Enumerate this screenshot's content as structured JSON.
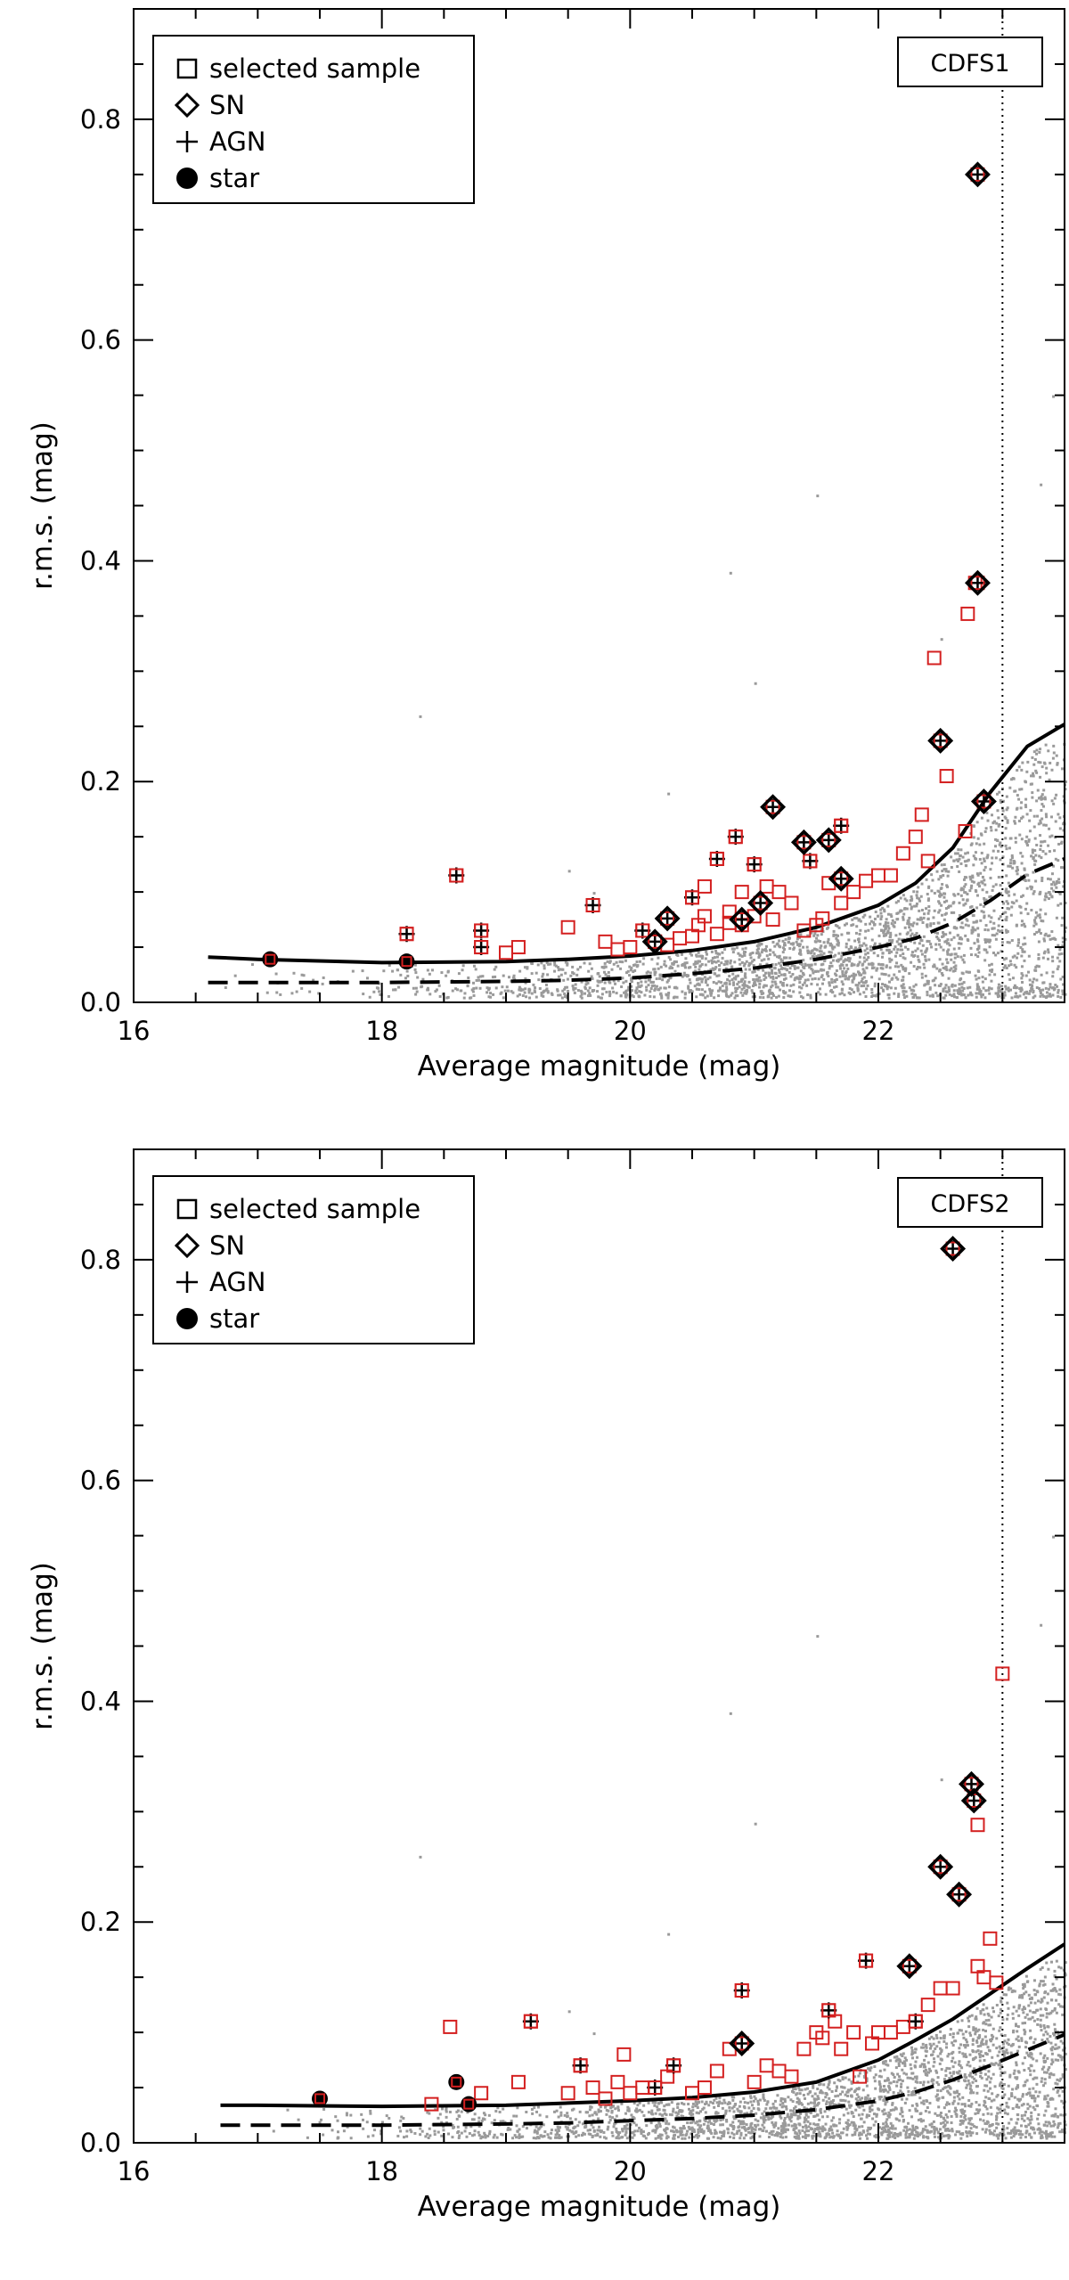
{
  "chart_data": [
    {
      "type": "scatter",
      "field_label": "CDFS1",
      "xlabel": "Average magnitude (mag)",
      "ylabel": "r.m.s. (mag)",
      "xlim": [
        16.0,
        23.5
      ],
      "ylim": [
        0.0,
        0.9
      ],
      "x_ticks": [
        16,
        18,
        20,
        22
      ],
      "y_ticks": [
        0.0,
        0.2,
        0.4,
        0.6,
        0.8
      ],
      "limit_magnitude": 23.0,
      "legend": {
        "position": "top-left",
        "entries": [
          {
            "symbol": "square",
            "label": "selected sample"
          },
          {
            "symbol": "diamond",
            "label": "SN"
          },
          {
            "symbol": "plus",
            "label": "AGN"
          },
          {
            "symbol": "filled-circle",
            "label": "star"
          }
        ]
      },
      "colors": {
        "background_points": "#9a9a9a",
        "selected": "#d42020",
        "line": "#000000"
      },
      "threshold_solid": [
        [
          16.6,
          0.041
        ],
        [
          17.0,
          0.039
        ],
        [
          18.0,
          0.036
        ],
        [
          19.0,
          0.037
        ],
        [
          19.5,
          0.039
        ],
        [
          20.0,
          0.042
        ],
        [
          20.5,
          0.047
        ],
        [
          21.0,
          0.055
        ],
        [
          21.5,
          0.068
        ],
        [
          22.0,
          0.088
        ],
        [
          22.3,
          0.108
        ],
        [
          22.6,
          0.14
        ],
        [
          22.9,
          0.19
        ],
        [
          23.2,
          0.232
        ],
        [
          23.5,
          0.252
        ]
      ],
      "mean_dashed": [
        [
          16.6,
          0.018
        ],
        [
          17.0,
          0.018
        ],
        [
          18.0,
          0.018
        ],
        [
          19.0,
          0.019
        ],
        [
          19.5,
          0.02
        ],
        [
          20.0,
          0.022
        ],
        [
          20.5,
          0.026
        ],
        [
          21.0,
          0.031
        ],
        [
          21.5,
          0.039
        ],
        [
          22.0,
          0.05
        ],
        [
          22.3,
          0.058
        ],
        [
          22.6,
          0.072
        ],
        [
          22.9,
          0.092
        ],
        [
          23.2,
          0.116
        ],
        [
          23.5,
          0.13
        ]
      ],
      "selected_points": [
        [
          18.6,
          0.115
        ],
        [
          18.2,
          0.062
        ],
        [
          18.8,
          0.065
        ],
        [
          18.8,
          0.05
        ],
        [
          19.0,
          0.045
        ],
        [
          19.1,
          0.05
        ],
        [
          19.5,
          0.068
        ],
        [
          19.7,
          0.088
        ],
        [
          19.8,
          0.055
        ],
        [
          19.9,
          0.048
        ],
        [
          20.0,
          0.05
        ],
        [
          20.1,
          0.065
        ],
        [
          20.2,
          0.055
        ],
        [
          20.3,
          0.052
        ],
        [
          20.4,
          0.058
        ],
        [
          20.5,
          0.06
        ],
        [
          20.5,
          0.095
        ],
        [
          20.55,
          0.07
        ],
        [
          20.6,
          0.078
        ],
        [
          20.6,
          0.105
        ],
        [
          20.7,
          0.13
        ],
        [
          20.7,
          0.062
        ],
        [
          20.8,
          0.072
        ],
        [
          20.8,
          0.082
        ],
        [
          20.85,
          0.15
        ],
        [
          20.9,
          0.07
        ],
        [
          20.9,
          0.1
        ],
        [
          21.0,
          0.125
        ],
        [
          21.0,
          0.078
        ],
        [
          21.1,
          0.105
        ],
        [
          21.15,
          0.075
        ],
        [
          21.2,
          0.1
        ],
        [
          21.3,
          0.09
        ],
        [
          21.4,
          0.065
        ],
        [
          21.45,
          0.128
        ],
        [
          21.5,
          0.07
        ],
        [
          21.55,
          0.076
        ],
        [
          21.6,
          0.108
        ],
        [
          21.7,
          0.09
        ],
        [
          21.7,
          0.16
        ],
        [
          21.8,
          0.1
        ],
        [
          21.9,
          0.11
        ],
        [
          22.0,
          0.115
        ],
        [
          22.1,
          0.115
        ],
        [
          22.2,
          0.135
        ],
        [
          22.3,
          0.15
        ],
        [
          22.35,
          0.17
        ],
        [
          22.4,
          0.128
        ],
        [
          22.45,
          0.312
        ],
        [
          22.55,
          0.205
        ],
        [
          22.7,
          0.155
        ],
        [
          22.72,
          0.352
        ],
        [
          22.78,
          0.38
        ]
      ],
      "sn_points": [
        [
          20.3,
          0.076
        ],
        [
          20.2,
          0.055
        ],
        [
          20.9,
          0.075
        ],
        [
          21.05,
          0.09
        ],
        [
          21.15,
          0.177
        ],
        [
          21.4,
          0.145
        ],
        [
          21.6,
          0.147
        ],
        [
          21.7,
          0.112
        ],
        [
          22.5,
          0.237
        ],
        [
          22.85,
          0.182
        ],
        [
          22.8,
          0.38
        ],
        [
          22.8,
          0.75
        ]
      ],
      "agn_points": [
        [
          18.6,
          0.115
        ],
        [
          18.2,
          0.062
        ],
        [
          18.8,
          0.065
        ],
        [
          18.8,
          0.05
        ],
        [
          19.7,
          0.088
        ],
        [
          20.1,
          0.065
        ],
        [
          20.5,
          0.095
        ],
        [
          20.7,
          0.13
        ],
        [
          20.85,
          0.15
        ],
        [
          21.0,
          0.125
        ],
        [
          21.45,
          0.128
        ],
        [
          21.7,
          0.16
        ],
        [
          20.3,
          0.076
        ],
        [
          20.2,
          0.055
        ],
        [
          20.9,
          0.075
        ],
        [
          21.05,
          0.09
        ],
        [
          21.15,
          0.177
        ],
        [
          21.4,
          0.145
        ],
        [
          21.6,
          0.147
        ],
        [
          21.7,
          0.112
        ],
        [
          22.5,
          0.237
        ],
        [
          22.85,
          0.182
        ],
        [
          22.8,
          0.38
        ],
        [
          22.8,
          0.75
        ]
      ],
      "star_points": [
        [
          17.1,
          0.039
        ],
        [
          18.2,
          0.037
        ]
      ]
    },
    {
      "type": "scatter",
      "field_label": "CDFS2",
      "xlabel": "Average magnitude (mag)",
      "ylabel": "r.m.s. (mag)",
      "xlim": [
        16.0,
        23.5
      ],
      "ylim": [
        0.0,
        0.9
      ],
      "x_ticks": [
        16,
        18,
        20,
        22
      ],
      "y_ticks": [
        0.0,
        0.2,
        0.4,
        0.6,
        0.8
      ],
      "limit_magnitude": 23.0,
      "legend": {
        "position": "top-left",
        "entries": [
          {
            "symbol": "square",
            "label": "selected sample"
          },
          {
            "symbol": "diamond",
            "label": "SN"
          },
          {
            "symbol": "plus",
            "label": "AGN"
          },
          {
            "symbol": "filled-circle",
            "label": "star"
          }
        ]
      },
      "colors": {
        "background_points": "#9a9a9a",
        "selected": "#d42020",
        "line": "#000000"
      },
      "threshold_solid": [
        [
          16.7,
          0.034
        ],
        [
          17.0,
          0.034
        ],
        [
          18.0,
          0.033
        ],
        [
          19.0,
          0.034
        ],
        [
          19.5,
          0.036
        ],
        [
          20.0,
          0.038
        ],
        [
          20.5,
          0.041
        ],
        [
          21.0,
          0.046
        ],
        [
          21.5,
          0.055
        ],
        [
          22.0,
          0.075
        ],
        [
          22.3,
          0.093
        ],
        [
          22.6,
          0.112
        ],
        [
          22.9,
          0.135
        ],
        [
          23.2,
          0.158
        ],
        [
          23.5,
          0.18
        ]
      ],
      "mean_dashed": [
        [
          16.7,
          0.016
        ],
        [
          17.0,
          0.016
        ],
        [
          18.0,
          0.016
        ],
        [
          19.0,
          0.017
        ],
        [
          19.5,
          0.018
        ],
        [
          20.0,
          0.02
        ],
        [
          20.5,
          0.022
        ],
        [
          21.0,
          0.025
        ],
        [
          21.5,
          0.03
        ],
        [
          22.0,
          0.038
        ],
        [
          22.3,
          0.046
        ],
        [
          22.6,
          0.057
        ],
        [
          22.9,
          0.07
        ],
        [
          23.2,
          0.084
        ],
        [
          23.5,
          0.098
        ]
      ],
      "selected_points": [
        [
          18.4,
          0.035
        ],
        [
          18.55,
          0.105
        ],
        [
          18.8,
          0.045
        ],
        [
          19.1,
          0.055
        ],
        [
          19.2,
          0.11
        ],
        [
          19.5,
          0.045
        ],
        [
          19.6,
          0.07
        ],
        [
          19.7,
          0.05
        ],
        [
          19.8,
          0.04
        ],
        [
          19.9,
          0.055
        ],
        [
          19.95,
          0.08
        ],
        [
          20.0,
          0.045
        ],
        [
          20.1,
          0.05
        ],
        [
          20.2,
          0.05
        ],
        [
          20.3,
          0.06
        ],
        [
          20.35,
          0.07
        ],
        [
          20.5,
          0.045
        ],
        [
          20.6,
          0.05
        ],
        [
          20.7,
          0.065
        ],
        [
          20.8,
          0.085
        ],
        [
          20.9,
          0.138
        ],
        [
          21.0,
          0.055
        ],
        [
          21.1,
          0.07
        ],
        [
          21.2,
          0.065
        ],
        [
          21.3,
          0.06
        ],
        [
          21.4,
          0.085
        ],
        [
          21.5,
          0.1
        ],
        [
          21.55,
          0.095
        ],
        [
          21.6,
          0.12
        ],
        [
          21.65,
          0.11
        ],
        [
          21.7,
          0.085
        ],
        [
          21.8,
          0.1
        ],
        [
          21.85,
          0.06
        ],
        [
          21.9,
          0.165
        ],
        [
          21.95,
          0.09
        ],
        [
          22.0,
          0.1
        ],
        [
          22.1,
          0.1
        ],
        [
          22.2,
          0.105
        ],
        [
          22.3,
          0.11
        ],
        [
          22.4,
          0.125
        ],
        [
          22.5,
          0.14
        ],
        [
          22.6,
          0.14
        ],
        [
          22.8,
          0.288
        ],
        [
          22.8,
          0.16
        ],
        [
          22.85,
          0.15
        ],
        [
          22.9,
          0.185
        ],
        [
          22.95,
          0.145
        ],
        [
          23.0,
          0.425
        ]
      ],
      "sn_points": [
        [
          20.9,
          0.09
        ],
        [
          22.25,
          0.16
        ],
        [
          22.5,
          0.25
        ],
        [
          22.65,
          0.225
        ],
        [
          22.75,
          0.325
        ],
        [
          22.77,
          0.31
        ],
        [
          22.6,
          0.81
        ]
      ],
      "agn_points": [
        [
          19.2,
          0.11
        ],
        [
          19.6,
          0.07
        ],
        [
          20.2,
          0.05
        ],
        [
          20.35,
          0.07
        ],
        [
          20.9,
          0.138
        ],
        [
          21.6,
          0.12
        ],
        [
          21.9,
          0.165
        ],
        [
          22.3,
          0.11
        ],
        [
          20.9,
          0.09
        ],
        [
          22.25,
          0.16
        ],
        [
          22.5,
          0.25
        ],
        [
          22.65,
          0.225
        ],
        [
          22.75,
          0.325
        ],
        [
          22.77,
          0.31
        ],
        [
          22.6,
          0.81
        ]
      ],
      "star_points": [
        [
          17.5,
          0.04
        ],
        [
          18.6,
          0.055
        ],
        [
          18.7,
          0.035
        ]
      ]
    }
  ]
}
